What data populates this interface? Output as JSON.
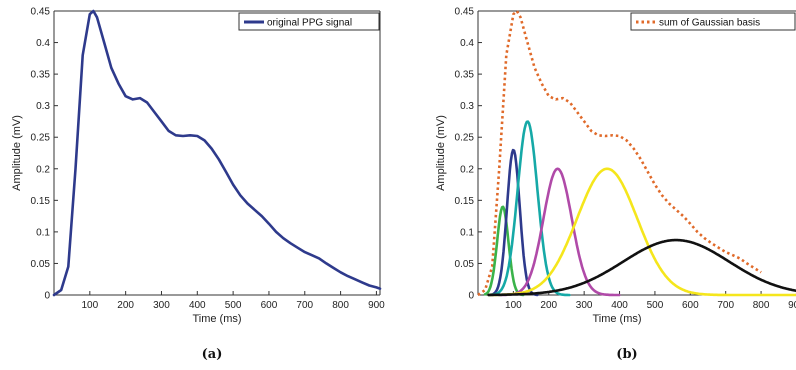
{
  "chart_data": [
    {
      "type": "line",
      "caption": "(a)",
      "xlabel": "Time (ms)",
      "ylabel": "Amplitude (mV)",
      "xlim": [
        0,
        910
      ],
      "ylim": [
        0,
        0.45
      ],
      "xticks": [
        100,
        200,
        300,
        400,
        500,
        600,
        700,
        800,
        900
      ],
      "yticks": [
        0,
        0.05,
        0.1,
        0.15,
        0.2,
        0.25,
        0.3,
        0.35,
        0.4,
        0.45
      ],
      "legend": "top-right",
      "series": [
        {
          "name": "original PPG signal",
          "color": "#2e3a8c",
          "x": [
            0,
            20,
            40,
            60,
            80,
            100,
            110,
            120,
            140,
            160,
            180,
            200,
            220,
            240,
            260,
            280,
            300,
            320,
            340,
            360,
            380,
            400,
            420,
            440,
            460,
            480,
            500,
            520,
            540,
            560,
            580,
            600,
            620,
            640,
            660,
            680,
            700,
            720,
            740,
            760,
            780,
            800,
            820,
            840,
            860,
            880,
            900,
            910
          ],
          "y": [
            0.0,
            0.008,
            0.045,
            0.2,
            0.38,
            0.445,
            0.45,
            0.44,
            0.4,
            0.36,
            0.335,
            0.315,
            0.31,
            0.312,
            0.305,
            0.29,
            0.275,
            0.26,
            0.253,
            0.252,
            0.253,
            0.252,
            0.245,
            0.232,
            0.215,
            0.195,
            0.175,
            0.158,
            0.145,
            0.135,
            0.125,
            0.113,
            0.1,
            0.09,
            0.082,
            0.075,
            0.068,
            0.063,
            0.058,
            0.05,
            0.043,
            0.036,
            0.03,
            0.025,
            0.02,
            0.015,
            0.012,
            0.01
          ]
        }
      ]
    },
    {
      "type": "line",
      "caption": "(b)",
      "xlabel": "Time (ms)",
      "ylabel": "Amplitude (mV)",
      "xlim": [
        0,
        910
      ],
      "ylim": [
        0,
        0.45
      ],
      "xticks": [
        100,
        200,
        300,
        400,
        500,
        600,
        700,
        800,
        900
      ],
      "yticks": [
        0,
        0.05,
        0.1,
        0.15,
        0.2,
        0.25,
        0.3,
        0.35,
        0.4,
        0.45
      ],
      "legend": "top-right",
      "series": [
        {
          "name": "sum of Gaussian basis",
          "color": "#e06a2a",
          "dashed": true,
          "x": [
            0,
            20,
            40,
            60,
            80,
            100,
            110,
            120,
            140,
            160,
            180,
            200,
            220,
            240,
            260,
            280,
            300,
            320,
            340,
            360,
            380,
            400,
            420,
            440,
            460,
            480,
            500,
            520,
            540,
            560,
            580,
            600,
            620,
            640,
            660,
            680,
            700,
            720,
            740,
            760,
            780,
            800
          ],
          "y": [
            0.0,
            0.008,
            0.045,
            0.2,
            0.38,
            0.445,
            0.45,
            0.44,
            0.4,
            0.36,
            0.335,
            0.315,
            0.31,
            0.312,
            0.305,
            0.29,
            0.275,
            0.26,
            0.253,
            0.252,
            0.253,
            0.252,
            0.245,
            0.232,
            0.215,
            0.195,
            0.175,
            0.158,
            0.145,
            0.135,
            0.125,
            0.113,
            0.1,
            0.09,
            0.082,
            0.075,
            0.068,
            0.063,
            0.058,
            0.05,
            0.043,
            0.036
          ]
        },
        {
          "name": "",
          "color": "#3ab34a",
          "shape": "gaussian",
          "amp": 0.14,
          "mu": 70,
          "sigma": 16,
          "x_range": [
            20,
            130
          ]
        },
        {
          "name": "",
          "color": "#2e3a8c",
          "shape": "gaussian",
          "amp": 0.23,
          "mu": 100,
          "sigma": 18,
          "x_range": [
            30,
            170
          ]
        },
        {
          "name": "",
          "color": "#16a9a7",
          "shape": "gaussian",
          "amp": 0.275,
          "mu": 140,
          "sigma": 28,
          "x_range": [
            30,
            260
          ]
        },
        {
          "name": "",
          "color": "#b04aa8",
          "shape": "gaussian",
          "amp": 0.2,
          "mu": 225,
          "sigma": 40,
          "x_range": [
            60,
            400
          ]
        },
        {
          "name": "",
          "color": "#f5e61c",
          "shape": "gaussian",
          "amp": 0.2,
          "mu": 365,
          "sigma": 85,
          "x_range": [
            30,
            910
          ]
        },
        {
          "name": "",
          "color": "#111111",
          "shape": "gaussian",
          "amp": 0.087,
          "mu": 560,
          "sigma": 150,
          "x_range": [
            30,
            910
          ]
        }
      ]
    }
  ]
}
